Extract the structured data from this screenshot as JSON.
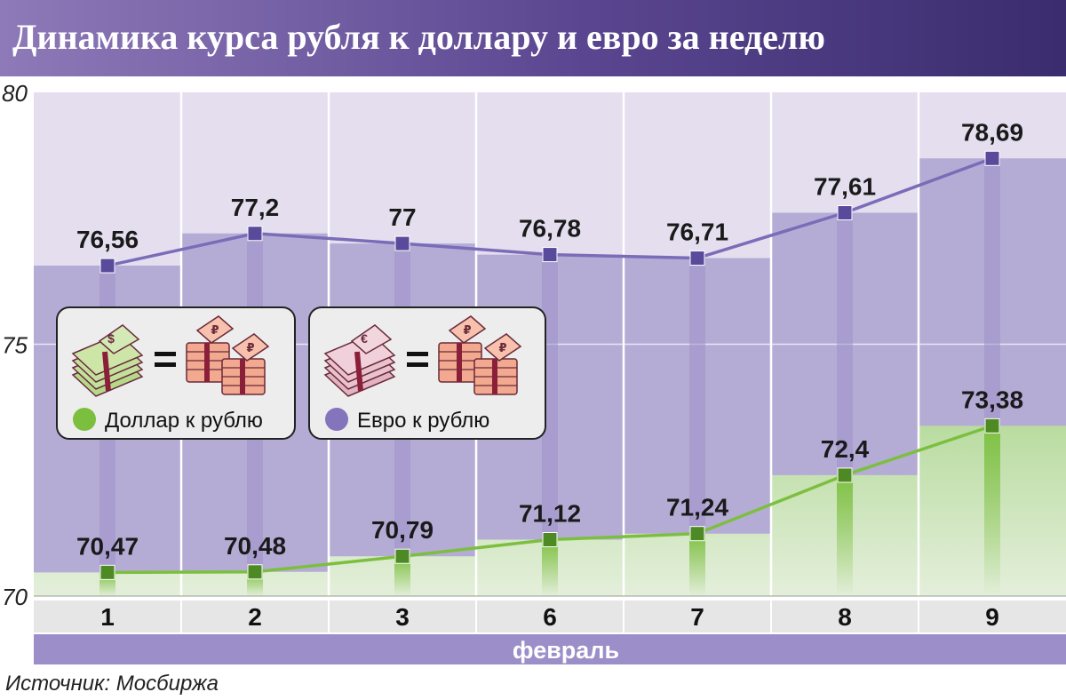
{
  "title": "Динамика курса рубля к доллару и евро за неделю",
  "source": "Источник: Мосбиржа",
  "colors": {
    "title_bg": "#5a4690",
    "usd": "#7cbf3f",
    "usd_marker": "#4e8a23",
    "eur": "#8474bc",
    "eur_marker": "#5a4a9c",
    "axis_band": "#e6e6e6",
    "month_band": "#9c8ec8"
  },
  "legend": [
    {
      "label": "Доллар к рублю",
      "icon": "dollar-stack-equals-ruble-stacks-icon"
    },
    {
      "label": "Евро к рублю",
      "icon": "euro-stack-equals-ruble-stacks-icon"
    }
  ],
  "chart_data": {
    "type": "line",
    "title": "Динамика курса рубля к доллару и евро за неделю",
    "xlabel": "февраль",
    "ylabel": "",
    "categories": [
      "1",
      "2",
      "3",
      "6",
      "7",
      "8",
      "9"
    ],
    "yticks": [
      "70",
      "75",
      "80"
    ],
    "ylim": [
      70,
      80
    ],
    "grid": true,
    "series": [
      {
        "name": "Евро к рублю",
        "values": [
          76.56,
          77.2,
          77,
          76.78,
          76.71,
          77.61,
          78.69
        ],
        "labels": [
          "76,56",
          "77,2",
          "77",
          "76,78",
          "76,71",
          "77,61",
          "78,69"
        ]
      },
      {
        "name": "Доллар к рублю",
        "values": [
          70.47,
          70.48,
          70.79,
          71.12,
          71.24,
          72.4,
          73.38
        ],
        "labels": [
          "70,47",
          "70,48",
          "70,79",
          "71,12",
          "71,24",
          "72,4",
          "73,38"
        ]
      }
    ]
  }
}
